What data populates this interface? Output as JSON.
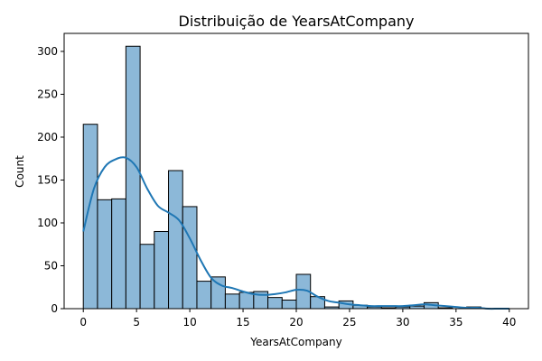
{
  "chart_data": {
    "type": "bar",
    "title": "Distribuição de YearsAtCompany",
    "xlabel": "YearsAtCompany",
    "ylabel": "Count",
    "xlim": [
      -1.8,
      41.8
    ],
    "ylim": [
      0,
      321
    ],
    "xticks": [
      0,
      5,
      10,
      15,
      20,
      25,
      30,
      35,
      40
    ],
    "yticks": [
      0,
      50,
      100,
      150,
      200,
      250,
      300
    ],
    "bin_edges": [
      0,
      1.333,
      2.667,
      4,
      5.333,
      6.667,
      8,
      9.333,
      10.667,
      12,
      13.333,
      14.667,
      16,
      17.333,
      18.667,
      20,
      21.333,
      22.667,
      24,
      25.333,
      26.667,
      28,
      29.333,
      30.667,
      32,
      33.333,
      34.667,
      36,
      37.333,
      38.667,
      40
    ],
    "counts": [
      215,
      127,
      128,
      306,
      75,
      90,
      161,
      119,
      32,
      37,
      17,
      19,
      20,
      13,
      10,
      40,
      14,
      2,
      9,
      4,
      2,
      1,
      2,
      3,
      7,
      1,
      0,
      2,
      0,
      0
    ],
    "kde": {
      "x": [
        0,
        1,
        2,
        3,
        4,
        5,
        6,
        7,
        8,
        9,
        10,
        11,
        12,
        13,
        14,
        15,
        16,
        17,
        18,
        19,
        20,
        21,
        22,
        23,
        24,
        25,
        26,
        27,
        28,
        29,
        30,
        31,
        32,
        33,
        34,
        35,
        36,
        37,
        38,
        39,
        40
      ],
      "y": [
        90,
        140,
        165,
        174,
        176,
        165,
        140,
        120,
        112,
        103,
        82,
        57,
        36,
        27,
        24,
        20,
        17,
        16,
        17,
        19,
        22,
        21,
        14,
        9,
        7,
        5,
        4,
        3,
        3,
        3,
        3,
        4,
        5,
        4,
        3,
        2,
        1,
        1,
        0,
        0,
        0
      ]
    },
    "colors": {
      "bar_fill": "#8cb8d8",
      "bar_edge": "#000000",
      "kde_line": "#1f77b4"
    },
    "grid": false,
    "legend": "none"
  }
}
